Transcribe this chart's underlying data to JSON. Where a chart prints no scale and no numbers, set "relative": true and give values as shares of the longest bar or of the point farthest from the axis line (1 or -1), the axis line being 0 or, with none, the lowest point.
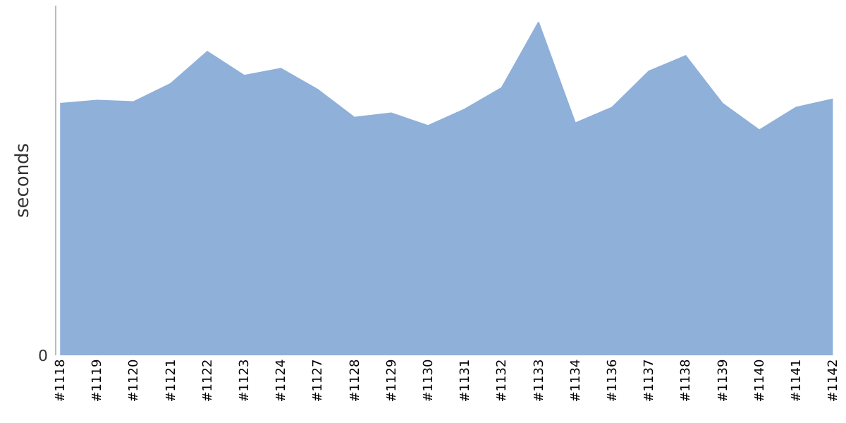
{
  "chart_data": {
    "type": "area",
    "relative": true,
    "ylabel": "seconds",
    "annotations": [
      "0"
    ],
    "categories": [
      "#1118",
      "#1119",
      "#1120",
      "#1121",
      "#1122",
      "#1123",
      "#1124",
      "#1127",
      "#1128",
      "#1129",
      "#1130",
      "#1131",
      "#1132",
      "#1133",
      "#1134",
      "#1136",
      "#1137",
      "#1138",
      "#1139",
      "#1140",
      "#1141",
      "#1142"
    ],
    "series": [
      {
        "color": "#8fb0d9",
        "values": [
          0.756,
          0.765,
          0.761,
          0.815,
          0.912,
          0.84,
          0.861,
          0.798,
          0.714,
          0.727,
          0.689,
          0.739,
          0.803,
          1,
          0.697,
          0.744,
          0.853,
          0.899,
          0.756,
          0.676,
          0.744,
          0.769
        ]
      }
    ]
  }
}
